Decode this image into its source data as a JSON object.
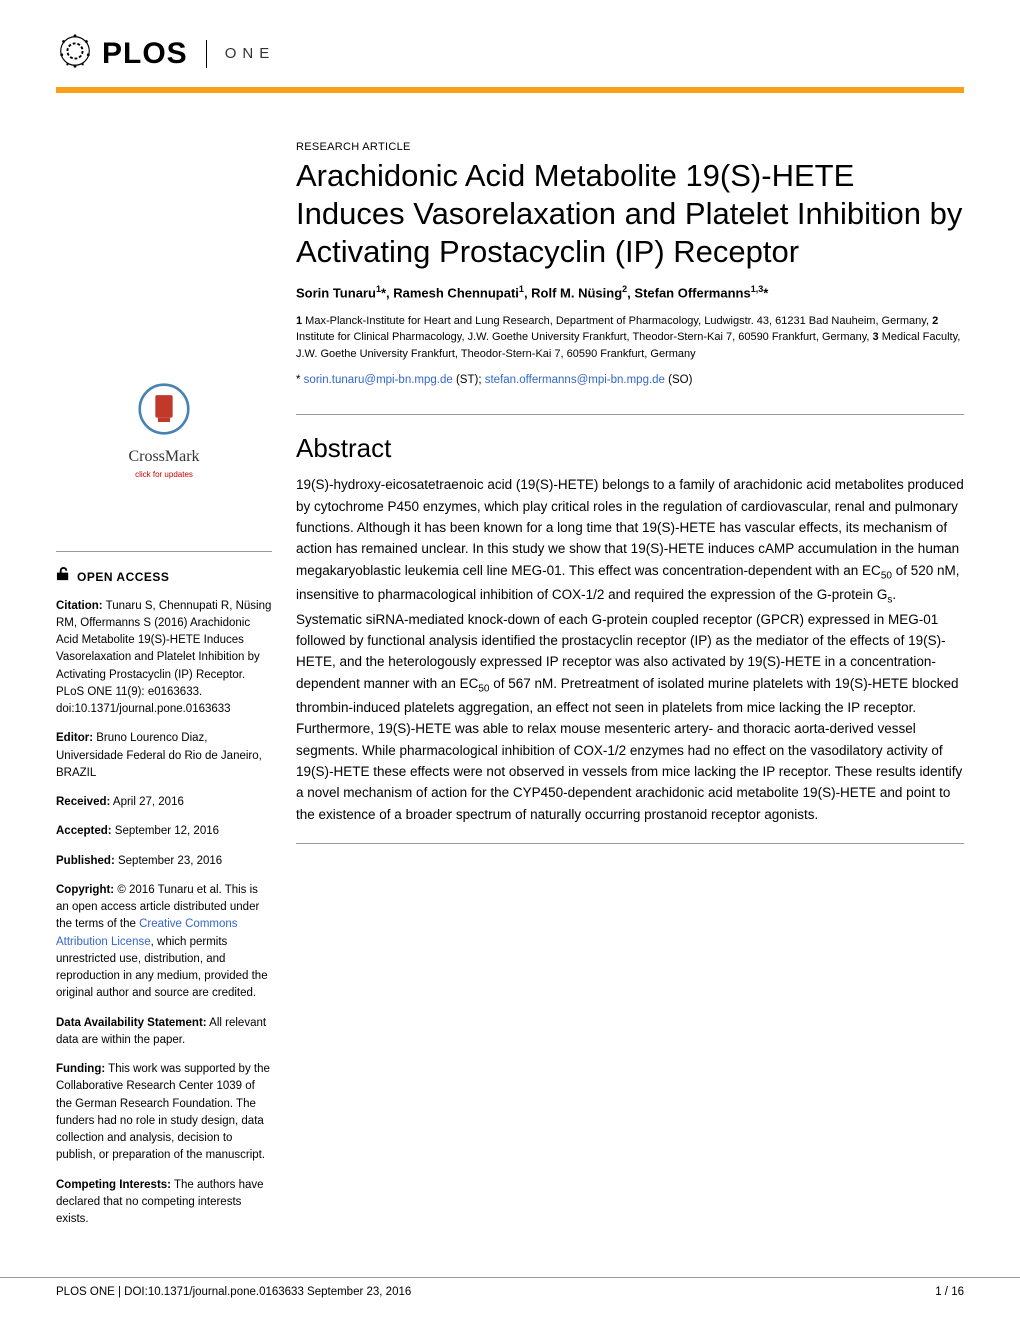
{
  "theme": {
    "accent_color": "#f7a11a",
    "link_color": "#3366cc",
    "text_color": "#000000",
    "background_color": "#ffffff",
    "rule_color": "#999999"
  },
  "header": {
    "journal_bold": "PLOS",
    "journal_suffix": "ONE"
  },
  "article": {
    "type": "RESEARCH ARTICLE",
    "title": "Arachidonic Acid Metabolite 19(S)-HETE Induces Vasorelaxation and Platelet Inhibition by Activating Prostacyclin (IP) Receptor",
    "authors_html": "Sorin Tunaru<sup>1</sup>*, Ramesh Chennupati<sup>1</sup>, Rolf M. Nüsing<sup>2</sup>, Stefan Offermanns<sup>1,3</sup>*",
    "affiliations_html": "<b>1</b> Max-Planck-Institute for Heart and Lung Research, Department of Pharmacology, Ludwigstr. 43, 61231 Bad Nauheim, Germany, <b>2</b> Institute for Clinical Pharmacology, J.W. Goethe University Frankfurt, Theodor-Stern-Kai 7, 60590 Frankfurt, Germany, <b>3</b> Medical Faculty, J.W. Goethe University Frankfurt, Theodor-Stern-Kai 7, 60590 Frankfurt, Germany",
    "corr_prefix": "* ",
    "corr_email1": "sorin.tunaru@mpi-bn.mpg.de",
    "corr_suffix1": " (ST); ",
    "corr_email2": "stefan.offermanns@mpi-bn.mpg.de",
    "corr_suffix2": " (SO)"
  },
  "abstract": {
    "heading": "Abstract",
    "text_html": "19(S)-hydroxy-eicosatetraenoic acid (19(S)-HETE) belongs to a family of arachidonic acid metabolites produced by cytochrome P450 enzymes, which play critical roles in the regulation of cardiovascular, renal and pulmonary functions. Although it has been known for a long time that 19(S)-HETE has vascular effects, its mechanism of action has remained unclear. In this study we show that 19(S)-HETE induces cAMP accumulation in the human megakaryoblastic leukemia cell line MEG-01. This effect was concentration-dependent with an EC<sub>50</sub> of 520 nM, insensitive to pharmacological inhibition of COX-1/2 and required the expression of the G-protein G<sub>s</sub>. Systematic siRNA-mediated knock-down of each G-protein coupled receptor (GPCR) expressed in MEG-01 followed by functional analysis identified the prostacyclin receptor (IP) as the mediator of the effects of 19(S)-HETE, and the heterologously expressed IP receptor was also activated by 19(S)-HETE in a concentration-dependent manner with an EC<sub>50</sub> of 567 nM. Pretreatment of isolated murine platelets with 19(S)-HETE blocked thrombin-induced platelets aggregation, an effect not seen in platelets from mice lacking the IP receptor. Furthermore, 19(S)-HETE was able to relax mouse mesenteric artery- and thoracic aorta-derived vessel segments. While pharmacological inhibition of COX-1/2 enzymes had no effect on the vasodilatory activity of 19(S)-HETE these effects were not observed in vessels from mice lacking the IP receptor. These results identify a novel mechanism of action for the CYP450-dependent arachidonic acid metabolite 19(S)-HETE and point to the existence of a broader spectrum of naturally occurring prostanoid receptor agonists."
  },
  "sidebar": {
    "crossmark_label": "CrossMark",
    "crossmark_sub": "click for updates",
    "open_access": "OPEN ACCESS",
    "citation_label": "Citation:",
    "citation_text": " Tunaru S, Chennupati R, Nüsing RM, Offermanns S (2016) Arachidonic Acid Metabolite 19(S)-HETE Induces Vasorelaxation and Platelet Inhibition by Activating Prostacyclin (IP) Receptor. PLoS ONE 11(9): e0163633. doi:10.1371/journal.pone.0163633",
    "editor_label": "Editor:",
    "editor_text": " Bruno Lourenco Diaz, Universidade Federal do Rio de Janeiro, BRAZIL",
    "received_label": "Received:",
    "received_text": " April 27, 2016",
    "accepted_label": "Accepted:",
    "accepted_text": " September 12, 2016",
    "published_label": "Published:",
    "published_text": " September 23, 2016",
    "copyright_label": "Copyright:",
    "copyright_text_pre": " © 2016 Tunaru et al. This is an open access article distributed under the terms of the ",
    "copyright_link": "Creative Commons Attribution License",
    "copyright_text_post": ", which permits unrestricted use, distribution, and reproduction in any medium, provided the original author and source are credited.",
    "data_label": "Data Availability Statement:",
    "data_text": " All relevant data are within the paper.",
    "funding_label": "Funding:",
    "funding_text": " This work was supported by the Collaborative Research Center 1039 of the German Research Foundation. The funders had no role in study design, data collection and analysis, decision to publish, or preparation of the manuscript.",
    "competing_label": "Competing Interests:",
    "competing_text": " The authors have declared that no competing interests exists."
  },
  "footer": {
    "left": "PLOS ONE | DOI:10.1371/journal.pone.0163633   September 23, 2016",
    "right": "1 / 16"
  }
}
